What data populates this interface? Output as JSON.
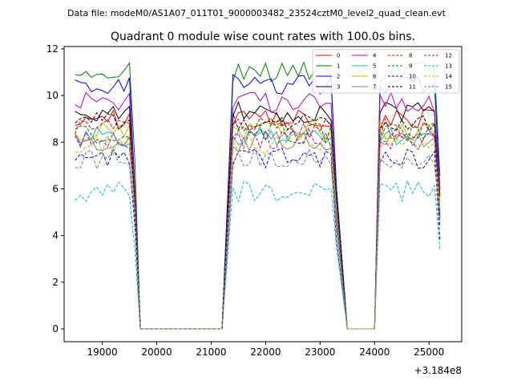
{
  "chart_data": {
    "type": "line",
    "suptitle": "Data file: modeM0/AS1A07_011T01_9000003482_23524cztM0_level2_quad_clean.evt",
    "title": "Quadrant 0 module wise count rates with 100.0s bins.",
    "xlabel": "",
    "ylabel": "",
    "x_offset_label": "+3.184e8",
    "xlim": [
      18300,
      25600
    ],
    "ylim": [
      -0.55,
      12.1
    ],
    "x_ticks": [
      19000,
      20000,
      21000,
      22000,
      23000,
      24000,
      25000
    ],
    "y_ticks": [
      0,
      2,
      4,
      6,
      8,
      10,
      12
    ],
    "segments": [
      {
        "start": 18500,
        "n": 12
      },
      {
        "start": 21400,
        "n": 20
      },
      {
        "start": 24100,
        "n": 12
      }
    ],
    "gaps": [
      [
        19700,
        21200
      ],
      [
        23500,
        24000
      ]
    ],
    "series": [
      {
        "name": "0",
        "color": "#ff0000",
        "dash": false,
        "level": 9.0
      },
      {
        "name": "1",
        "color": "#008000",
        "dash": false,
        "level": 11.0
      },
      {
        "name": "2",
        "color": "#0000ff",
        "dash": false,
        "level": 10.5
      },
      {
        "name": "3",
        "color": "#000000",
        "dash": false,
        "level": 9.3
      },
      {
        "name": "4",
        "color": "#bf00bf",
        "dash": false,
        "level": 9.7
      },
      {
        "name": "5",
        "color": "#00bfbf",
        "dash": false,
        "level": 8.2
      },
      {
        "name": "6",
        "color": "#bfbf00",
        "dash": false,
        "level": 8.5
      },
      {
        "name": "7",
        "color": "#808080",
        "dash": false,
        "level": 8.0
      },
      {
        "name": "8",
        "color": "#ff0000",
        "dash": true,
        "level": 8.6
      },
      {
        "name": "9",
        "color": "#008000",
        "dash": true,
        "level": 8.4
      },
      {
        "name": "10",
        "color": "#0000ff",
        "dash": true,
        "level": 7.3
      },
      {
        "name": "11",
        "color": "#000000",
        "dash": true,
        "level": 8.9
      },
      {
        "name": "12",
        "color": "#bf00bf",
        "dash": true,
        "level": 8.1
      },
      {
        "name": "13",
        "color": "#00bfbf",
        "dash": true,
        "level": 5.9
      },
      {
        "name": "14",
        "color": "#bfbf00",
        "dash": true,
        "level": 7.9
      },
      {
        "name": "15",
        "color": "#808080",
        "dash": true,
        "level": 7.3
      }
    ]
  }
}
